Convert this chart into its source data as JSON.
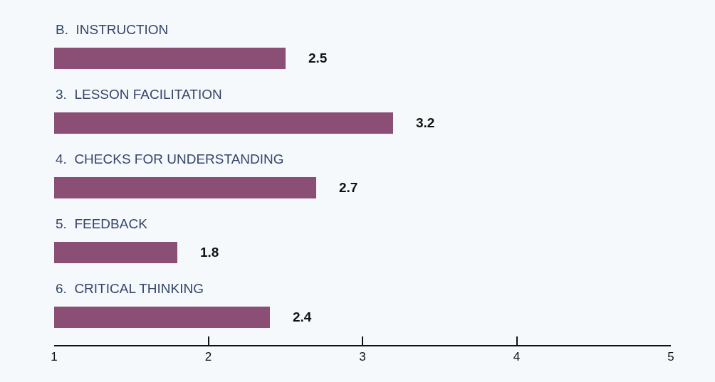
{
  "chart_data": {
    "type": "bar",
    "orientation": "horizontal",
    "categories": [
      "B.  INSTRUCTION",
      "3.  LESSON FACILITATION",
      "4.  CHECKS FOR UNDERSTANDING",
      "5.  FEEDBACK",
      "6.  CRITICAL THINKING"
    ],
    "values": [
      2.5,
      3.2,
      2.7,
      1.8,
      2.4
    ],
    "color": "#8b4f75",
    "xlim": [
      1,
      5
    ],
    "xticks": [
      1,
      2,
      3,
      4,
      5
    ],
    "data_labels": true,
    "grid": false,
    "legend": false
  }
}
